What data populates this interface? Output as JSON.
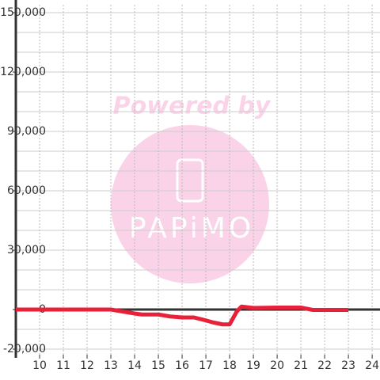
{
  "chart_data": {
    "type": "line",
    "watermark": {
      "title": "Powered by",
      "brand": "PAPiMO"
    },
    "x": [
      9,
      13,
      13.5,
      14,
      14.3,
      15,
      15.5,
      16,
      16.5,
      17,
      17.3,
      17.7,
      18,
      18.3,
      18.5,
      19,
      20,
      21,
      21.5,
      22,
      23
    ],
    "series": [
      {
        "color": "#e8203a",
        "values": [
          0,
          0,
          -1000,
          -2000,
          -2500,
          -2500,
          -3500,
          -4000,
          -4000,
          -5500,
          -6500,
          -7500,
          -7500,
          -1000,
          1500,
          800,
          1000,
          1000,
          -200,
          -200,
          -200
        ]
      }
    ],
    "xlim": [
      9,
      24.33
    ],
    "xticks": [
      10,
      11,
      12,
      13,
      14,
      15,
      16,
      17,
      18,
      19,
      20,
      21,
      22,
      23,
      24
    ],
    "ylim": [
      -20000,
      150000
    ],
    "yticks": [
      {
        "value": 150000,
        "label": "150,000"
      },
      {
        "value": 120000,
        "label": "120,000"
      },
      {
        "value": 90000,
        "label": "90,000"
      },
      {
        "value": 60000,
        "label": "60,000"
      },
      {
        "value": 30000,
        "label": "30,000"
      },
      0,
      {
        "value": -20000,
        "label": "-20,000"
      }
    ],
    "y_minor_ticks": [
      140000,
      130000,
      110000,
      100000,
      80000,
      70000,
      50000,
      40000,
      20000,
      10000,
      -10000
    ],
    "grid": true
  }
}
